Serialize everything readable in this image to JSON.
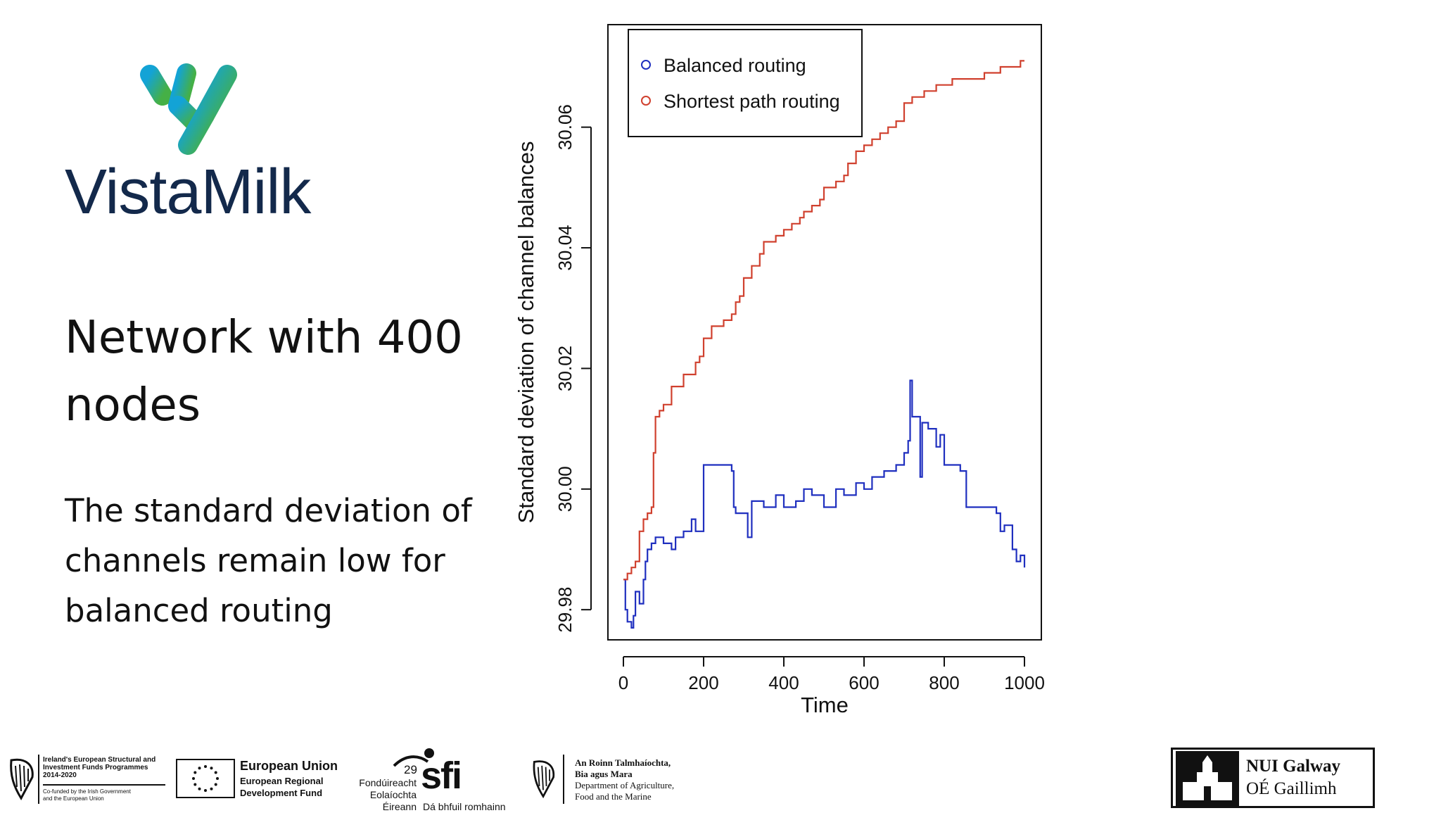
{
  "brand": {
    "name": "VistaMilk",
    "colors": {
      "navy": "#13294b",
      "teal": "#15a0c8",
      "green": "#3aa84b"
    }
  },
  "slide": {
    "title": "Network with 400 nodes",
    "body": "The standard deviation of channels remain low for balanced routing"
  },
  "chart_data": {
    "type": "line",
    "xlabel": "Time",
    "ylabel": "Standard deviation of channel balances",
    "xlim": [
      0,
      1000
    ],
    "ylim": [
      29.975,
      30.077
    ],
    "x_ticks": [
      "0",
      "200",
      "400",
      "600",
      "800",
      "1000"
    ],
    "y_ticks": [
      "29.98",
      "30.00",
      "30.02",
      "30.04",
      "30.06"
    ],
    "legend_position": "top-left",
    "grid": false,
    "series": [
      {
        "name": "Balanced routing",
        "color": "#1f2fbf",
        "x": [
          0,
          5,
          10,
          20,
          25,
          30,
          40,
          50,
          55,
          60,
          70,
          80,
          100,
          120,
          130,
          150,
          170,
          180,
          200,
          230,
          250,
          270,
          275,
          280,
          300,
          310,
          320,
          350,
          380,
          400,
          430,
          450,
          470,
          500,
          530,
          550,
          580,
          600,
          620,
          650,
          680,
          700,
          710,
          715,
          720,
          730,
          740,
          745,
          760,
          780,
          790,
          800,
          820,
          840,
          855,
          860,
          880,
          900,
          920,
          930,
          940,
          950,
          970,
          980,
          990,
          1000
        ],
        "y": [
          29.985,
          29.98,
          29.978,
          29.977,
          29.979,
          29.983,
          29.981,
          29.985,
          29.988,
          29.99,
          29.991,
          29.992,
          29.991,
          29.99,
          29.992,
          29.993,
          29.995,
          29.993,
          30.004,
          30.004,
          30.004,
          30.003,
          29.997,
          29.996,
          29.996,
          29.992,
          29.998,
          29.997,
          29.999,
          29.997,
          29.998,
          30.0,
          29.999,
          29.997,
          30.0,
          29.999,
          30.001,
          30.0,
          30.002,
          30.003,
          30.004,
          30.006,
          30.008,
          30.018,
          30.012,
          30.012,
          30.002,
          30.011,
          30.01,
          30.007,
          30.009,
          30.004,
          30.004,
          30.003,
          29.997,
          29.997,
          29.997,
          29.997,
          29.997,
          29.996,
          29.993,
          29.994,
          29.99,
          29.988,
          29.989,
          29.987
        ]
      },
      {
        "name": "Shortest path routing",
        "color": "#d0402e",
        "x": [
          0,
          10,
          20,
          30,
          40,
          50,
          60,
          70,
          75,
          80,
          90,
          100,
          120,
          150,
          180,
          190,
          200,
          220,
          250,
          270,
          280,
          290,
          300,
          320,
          340,
          350,
          380,
          400,
          420,
          440,
          450,
          470,
          490,
          500,
          530,
          550,
          560,
          580,
          600,
          620,
          640,
          660,
          680,
          700,
          720,
          750,
          780,
          820,
          850,
          900,
          940,
          960,
          990,
          1000
        ],
        "y": [
          29.985,
          29.986,
          29.987,
          29.988,
          29.993,
          29.995,
          29.996,
          29.997,
          30.006,
          30.012,
          30.013,
          30.014,
          30.017,
          30.019,
          30.021,
          30.022,
          30.025,
          30.027,
          30.028,
          30.029,
          30.031,
          30.032,
          30.035,
          30.037,
          30.039,
          30.041,
          30.042,
          30.043,
          30.044,
          30.045,
          30.046,
          30.047,
          30.048,
          30.05,
          30.051,
          30.052,
          30.054,
          30.056,
          30.057,
          30.058,
          30.059,
          30.06,
          30.061,
          30.064,
          30.065,
          30.066,
          30.067,
          30.068,
          30.068,
          30.069,
          30.07,
          30.07,
          30.071,
          30.071
        ]
      }
    ]
  },
  "footer": {
    "esif": {
      "lines": [
        "Ireland's European Structural and",
        "Investment Funds Programmes",
        "2014-2020"
      ],
      "cofunded": [
        "Co-funded by the Irish Government",
        "and the European Union"
      ]
    },
    "eu": {
      "title": "European Union",
      "lines": [
        "European Regional",
        "Development Fund"
      ]
    },
    "sfi": {
      "number": "29",
      "mark": "sfi",
      "lines": [
        "Fondúireacht",
        "Eolaíochta",
        "Éireann"
      ],
      "tagline": "Dá bhfuil romhainn"
    },
    "dafm": {
      "lines": [
        "An Roinn Talmhaíochta,",
        "Bia agus Mara",
        "Department of Agriculture,",
        "Food and the Marine"
      ]
    },
    "nuig": {
      "lines": [
        "NUI Galway",
        "OÉ Gaillimh"
      ]
    }
  }
}
